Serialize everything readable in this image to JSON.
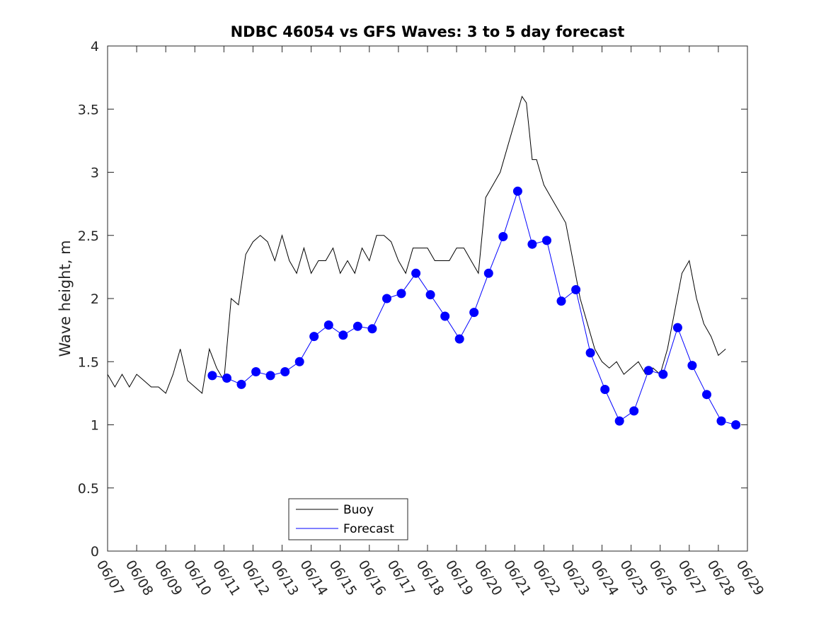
{
  "chart_data": {
    "type": "line",
    "title": "NDBC 46054 vs GFS Waves: 3 to 5 day forecast",
    "xlabel": "",
    "ylabel": "Wave height, m",
    "xlim": [
      0,
      22
    ],
    "ylim": [
      0,
      4
    ],
    "x_ticks": [
      0,
      1,
      2,
      3,
      4,
      5,
      6,
      7,
      8,
      9,
      10,
      11,
      12,
      13,
      14,
      15,
      16,
      17,
      18,
      19,
      20,
      21,
      22
    ],
    "x_tick_labels": [
      "06/07",
      "06/08",
      "06/09",
      "06/10",
      "06/11",
      "06/12",
      "06/13",
      "06/14",
      "06/15",
      "06/16",
      "06/17",
      "06/18",
      "06/19",
      "06/20",
      "06/21",
      "06/22",
      "06/23",
      "06/24",
      "06/25",
      "06/26",
      "06/27",
      "06/28",
      "06/29"
    ],
    "y_ticks": [
      0,
      0.5,
      1,
      1.5,
      2,
      2.5,
      3,
      3.5,
      4
    ],
    "y_tick_labels": [
      "0",
      "0.5",
      "1",
      "1.5",
      "2",
      "2.5",
      "3",
      "3.5",
      "4"
    ],
    "legend": {
      "position": "bottom-left",
      "entries": [
        "Buoy",
        "Forecast"
      ]
    },
    "colors": {
      "buoy": "#000000",
      "forecast": "#0000ff"
    },
    "series": [
      {
        "name": "Buoy",
        "x": [
          0,
          0.25,
          0.5,
          0.75,
          1,
          1.25,
          1.5,
          1.75,
          2,
          2.25,
          2.5,
          2.75,
          3,
          3.25,
          3.5,
          3.75,
          4,
          4.25,
          4.5,
          4.75,
          5,
          5.25,
          5.5,
          5.75,
          6,
          6.25,
          6.5,
          6.75,
          7,
          7.25,
          7.5,
          7.75,
          8,
          8.25,
          8.5,
          8.75,
          9,
          9.25,
          9.5,
          9.75,
          10,
          10.25,
          10.5,
          10.75,
          11,
          11.25,
          11.5,
          11.75,
          12,
          12.25,
          12.5,
          12.75,
          13,
          13.25,
          13.5,
          13.75,
          14,
          14.25,
          14.4,
          14.6,
          14.75,
          15,
          15.25,
          15.5,
          15.75,
          16,
          16.25,
          16.5,
          16.75,
          17,
          17.25,
          17.5,
          17.75,
          18,
          18.25,
          18.5,
          18.75,
          19,
          19.25,
          19.5,
          19.75,
          20,
          20.25,
          20.5,
          20.75,
          21,
          21.25
        ],
        "y": [
          1.4,
          1.3,
          1.4,
          1.3,
          1.4,
          1.35,
          1.3,
          1.3,
          1.25,
          1.4,
          1.6,
          1.35,
          1.3,
          1.25,
          1.6,
          1.45,
          1.35,
          2.0,
          1.95,
          2.35,
          2.45,
          2.5,
          2.45,
          2.3,
          2.5,
          2.3,
          2.2,
          2.4,
          2.2,
          2.3,
          2.3,
          2.4,
          2.2,
          2.3,
          2.2,
          2.4,
          2.3,
          2.5,
          2.5,
          2.45,
          2.3,
          2.2,
          2.4,
          2.4,
          2.4,
          2.3,
          2.3,
          2.3,
          2.4,
          2.4,
          2.3,
          2.2,
          2.8,
          2.9,
          3.0,
          3.2,
          3.4,
          3.6,
          3.55,
          3.1,
          3.1,
          2.9,
          2.8,
          2.7,
          2.6,
          2.3,
          2.0,
          1.8,
          1.6,
          1.5,
          1.45,
          1.5,
          1.4,
          1.45,
          1.5,
          1.4,
          1.45,
          1.4,
          1.6,
          1.9,
          2.2,
          2.3,
          2.0,
          1.8,
          1.7,
          1.55,
          1.6
        ]
      },
      {
        "name": "Forecast",
        "x": [
          3.6,
          4.1,
          4.6,
          5.1,
          5.6,
          6.1,
          6.6,
          7.1,
          7.6,
          8.1,
          8.6,
          9.1,
          9.6,
          10.1,
          10.6,
          11.1,
          11.6,
          12.1,
          12.6,
          13.1,
          13.6,
          14.1,
          14.6,
          15.1,
          15.6,
          16.1,
          16.6,
          17.1,
          17.6,
          18.1,
          18.6,
          19.1,
          19.6,
          20.1,
          20.6,
          21.1,
          21.6
        ],
        "y": [
          1.39,
          1.37,
          1.32,
          1.42,
          1.39,
          1.42,
          1.5,
          1.7,
          1.79,
          1.71,
          1.78,
          1.76,
          2.0,
          2.04,
          2.2,
          2.03,
          1.86,
          1.68,
          1.89,
          2.2,
          2.49,
          2.85,
          2.43,
          2.46,
          1.98,
          2.07,
          1.57,
          1.28,
          1.03,
          1.11,
          1.43,
          1.4,
          1.77,
          1.47,
          1.24,
          1.03,
          1.0
        ]
      }
    ]
  }
}
